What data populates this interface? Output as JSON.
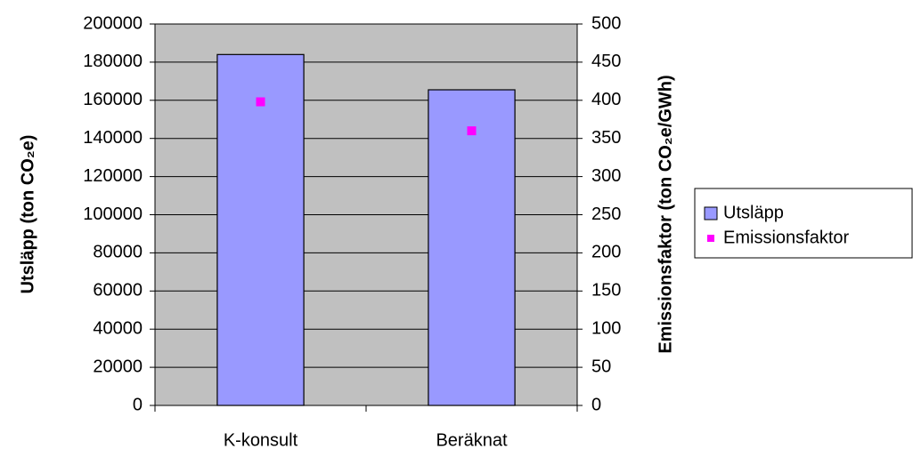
{
  "chart_data": {
    "type": "bar",
    "categories": [
      "K-konsult",
      "Beräknat"
    ],
    "series": [
      {
        "name": "Utsläpp",
        "type": "bar",
        "color": "#9999ff",
        "values": [
          184000,
          165500
        ]
      },
      {
        "name": "Emissionsfaktor",
        "type": "scatter",
        "color": "#ff00ff",
        "axis": "y2",
        "values": [
          398,
          360
        ]
      }
    ],
    "y_label": "Utsläpp (ton CO₂e)",
    "y2_label": "Emissionsfaktor (ton CO₂e/GWh)",
    "ylim": [
      0,
      200000
    ],
    "yticks": [
      0,
      20000,
      40000,
      60000,
      80000,
      100000,
      120000,
      140000,
      160000,
      180000,
      200000
    ],
    "y2lim": [
      0,
      500
    ],
    "y2ticks": [
      0,
      50,
      100,
      150,
      200,
      250,
      300,
      350,
      400,
      450,
      500
    ],
    "grid": true,
    "plot_background": "#c0c0c0",
    "legend": "right"
  }
}
